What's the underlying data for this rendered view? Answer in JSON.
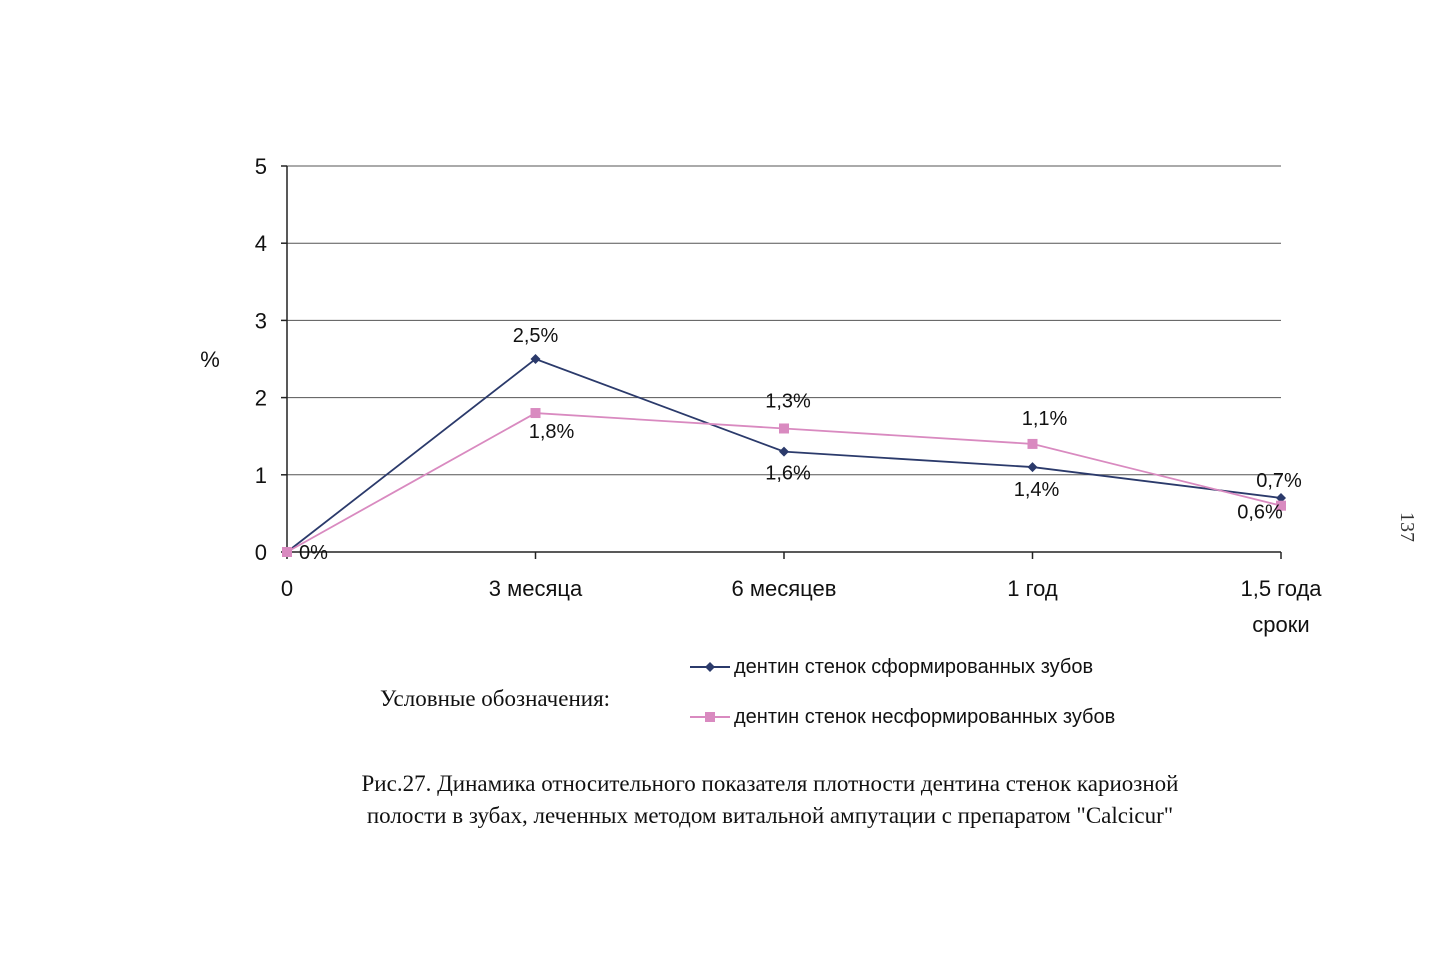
{
  "chart_data": {
    "type": "line",
    "title": "",
    "xlabel": "сроки",
    "ylabel": "%",
    "ylim": [
      0,
      5
    ],
    "yticks": [
      "0",
      "1",
      "2",
      "3",
      "4",
      "5"
    ],
    "categories": [
      "0",
      "3 месяца",
      "6 месяцев",
      "1 год",
      "1,5 года"
    ],
    "grid": true,
    "series": [
      {
        "name": "дентин стенок сформированных зубов",
        "values": [
          0,
          2.5,
          1.3,
          1.1,
          0.7
        ],
        "labels": [
          "0%",
          "2,5%",
          "1,3%",
          "1,1%",
          "0,7%"
        ],
        "color": "#2b3a6b",
        "marker": "diamond"
      },
      {
        "name": "дентин стенок несформированных зубов",
        "values": [
          0,
          1.8,
          1.6,
          1.4,
          0.6
        ],
        "labels": [
          "",
          "1,8%",
          "1,6%",
          "1,4%",
          "0,6%"
        ],
        "color": "#d98ac0",
        "marker": "square"
      }
    ]
  },
  "legend": {
    "intro": "Условные обозначения:"
  },
  "caption": {
    "line1": "Рис.27.  Динамика относительного показателя плотности дентина стенок кариозной",
    "line2": "полости в зубах, леченных методом витальной ампутации с препаратом \"Calcicur\""
  },
  "page_number": "137"
}
